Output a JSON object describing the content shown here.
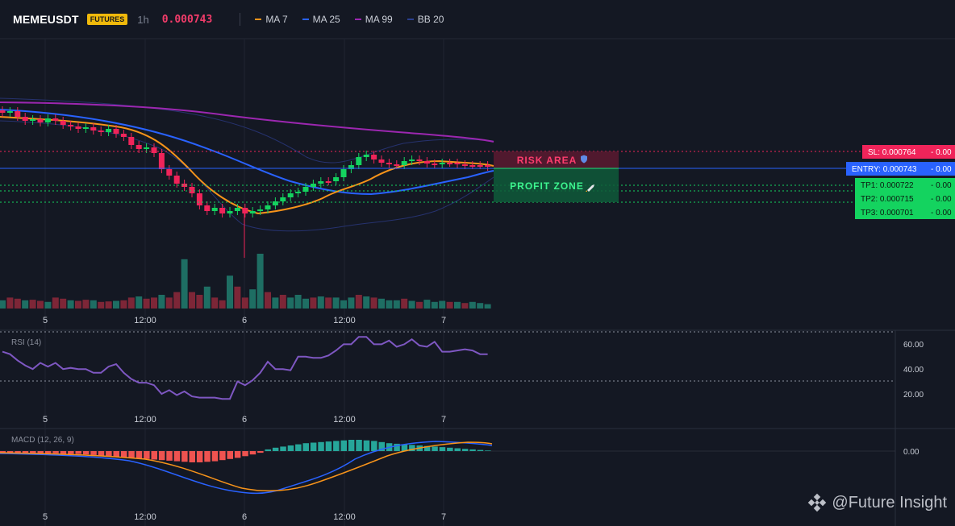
{
  "header": {
    "symbol": "MEMEUSDT",
    "badge": "FUTURES",
    "interval": "1h",
    "price": "0.000743",
    "indicators": [
      {
        "label": "MA 7",
        "color": "#f7931a"
      },
      {
        "label": "MA 25",
        "color": "#2962ff"
      },
      {
        "label": "MA 99",
        "color": "#9c27b0"
      },
      {
        "label": "BB 20",
        "color": "#2a3f8f"
      }
    ]
  },
  "zones": {
    "risk_label": "RISK AREA",
    "profit_label": "PROFIT ZONE"
  },
  "levels": [
    {
      "label": "SL: 0.000764",
      "value": "- 0.00",
      "color": "#f0245a",
      "price": 0.000764
    },
    {
      "label": "ENTRY: 0.000743",
      "value": "- 0.00",
      "color": "#2962ff",
      "price": 0.000743
    },
    {
      "label": "TP1: 0.000722",
      "value": "- 0.00",
      "color": "#14d35f",
      "price": 0.000722
    },
    {
      "label": "TP2: 0.000715",
      "value": "- 0.00",
      "color": "#14d35f",
      "price": 0.000715
    },
    {
      "label": "TP3: 0.000701",
      "value": "- 0.00",
      "color": "#14d35f",
      "price": 0.000701
    }
  ],
  "time_labels": [
    "5",
    "12:00",
    "6",
    "12:00",
    "7"
  ],
  "rsi": {
    "title": "RSI (14)",
    "ticks": [
      "60.00",
      "40.00",
      "20.00"
    ]
  },
  "macd": {
    "title": "MACD (12, 26, 9)",
    "tick": "0.00"
  },
  "watermark": "@Future Insight",
  "chart_data": {
    "type": "line",
    "rsi_values": [
      54,
      52,
      47,
      43,
      40,
      45,
      42,
      45,
      40,
      41,
      40,
      40,
      37,
      37,
      42,
      44,
      37,
      32,
      29,
      29,
      27,
      20,
      23,
      19,
      22,
      18,
      17,
      17,
      17,
      16,
      16,
      30,
      27,
      31,
      37,
      46,
      40,
      40,
      39,
      50,
      50,
      49,
      49,
      51,
      55,
      60,
      60,
      66,
      66,
      60,
      60,
      63,
      58,
      60,
      64,
      59,
      58,
      62,
      54,
      54,
      55,
      56,
      55,
      52,
      52
    ],
    "rsi_levels": [
      70,
      30
    ],
    "macd_hist": [
      -0.3,
      -0.3,
      -0.3,
      -0.4,
      -0.4,
      -0.4,
      -0.4,
      -0.4,
      -0.5,
      -0.5,
      -0.5,
      -0.6,
      -0.7,
      -0.8,
      -0.9,
      -1.0,
      -1.1,
      -1.2,
      -1.3,
      -1.4,
      -1.5,
      -1.6,
      -1.7,
      -1.8,
      -1.9,
      -2.0,
      -2.0,
      -1.9,
      -1.8,
      -1.6,
      -1.4,
      -1.2,
      -0.9,
      -0.6,
      -0.3,
      0.3,
      0.6,
      0.8,
      1.0,
      1.2,
      1.4,
      1.5,
      1.6,
      1.7,
      1.8,
      1.9,
      2.0,
      2.0,
      1.9,
      1.8,
      1.6,
      1.4,
      1.3,
      1.2,
      1.1,
      1.0,
      0.9,
      0.8,
      0.7,
      0.6,
      0.5,
      0.4,
      0.3,
      0.2,
      0.1
    ],
    "volume_rel": [
      0.15,
      0.2,
      0.18,
      0.15,
      0.16,
      0.14,
      0.12,
      0.2,
      0.18,
      0.15,
      0.14,
      0.16,
      0.15,
      0.12,
      0.13,
      0.14,
      0.15,
      0.2,
      0.22,
      0.18,
      0.2,
      0.25,
      0.2,
      0.3,
      0.9,
      0.3,
      0.25,
      0.4,
      0.2,
      0.15,
      0.6,
      0.4,
      0.2,
      0.35,
      1.0,
      0.3,
      0.2,
      0.25,
      0.2,
      0.25,
      0.18,
      0.2,
      0.22,
      0.2,
      0.2,
      0.15,
      0.2,
      0.25,
      0.22,
      0.2,
      0.18,
      0.15,
      0.15,
      0.18,
      0.14,
      0.12,
      0.16,
      0.12,
      0.14,
      0.12,
      0.12,
      0.1,
      0.12,
      0.1,
      0.08
    ]
  }
}
